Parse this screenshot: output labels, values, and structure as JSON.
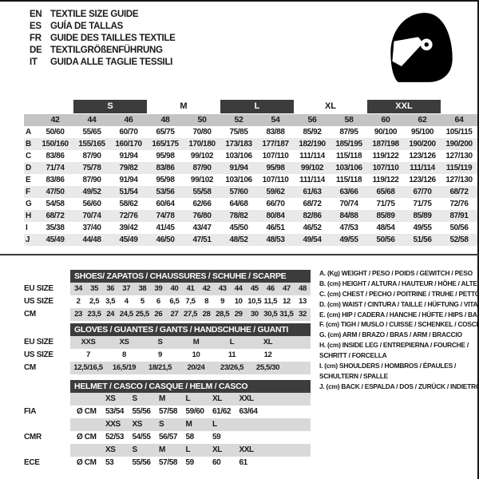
{
  "page": {
    "languages": [
      {
        "code": "EN",
        "text": "TEXTILE SIZE GUIDE"
      },
      {
        "code": "ES",
        "text": "GUÍA DE TALLAS"
      },
      {
        "code": "FR",
        "text": "GUIDE DES TAILLES TEXTILE"
      },
      {
        "code": "DE",
        "text": "TEXTILGRÖßENFÜHRUNG"
      },
      {
        "code": "IT",
        "text": "GUIDA ALLE TAGLIE TESSILI"
      }
    ],
    "helmet_icon": "racing-helmet"
  },
  "size_table": {
    "bands": [
      {
        "label": "S",
        "highlight": true
      },
      {
        "label": "M",
        "highlight": false
      },
      {
        "label": "L",
        "highlight": true
      },
      {
        "label": "XL",
        "highlight": false
      },
      {
        "label": "XXL",
        "highlight": true
      }
    ],
    "columns": [
      "42",
      "44",
      "46",
      "48",
      "50",
      "52",
      "54",
      "56",
      "58",
      "60",
      "62",
      "64"
    ],
    "rows": [
      {
        "label": "A",
        "values": [
          "50/60",
          "55/65",
          "60/70",
          "65/75",
          "70/80",
          "75/85",
          "83/88",
          "85/92",
          "87/95",
          "90/100",
          "95/100",
          "105/115"
        ]
      },
      {
        "label": "B",
        "values": [
          "150/160",
          "155/165",
          "160/170",
          "165/175",
          "170/180",
          "173/183",
          "177/187",
          "182/190",
          "185/195",
          "187/198",
          "190/200",
          "190/200"
        ]
      },
      {
        "label": "C",
        "values": [
          "83/86",
          "87/90",
          "91/94",
          "95/98",
          "99/102",
          "103/106",
          "107/110",
          "111/114",
          "115/118",
          "119/122",
          "123/126",
          "127/130"
        ]
      },
      {
        "label": "D",
        "values": [
          "71/74",
          "75/78",
          "79/82",
          "83/86",
          "87/90",
          "91/94",
          "95/98",
          "99/102",
          "103/106",
          "107/110",
          "111/114",
          "115/119"
        ]
      },
      {
        "label": "E",
        "values": [
          "83/86",
          "87/90",
          "91/94",
          "95/98",
          "99/102",
          "103/106",
          "107/110",
          "111/114",
          "115/118",
          "119/122",
          "123/126",
          "127/130"
        ]
      },
      {
        "label": "F",
        "values": [
          "47/50",
          "49/52",
          "51/54",
          "53/56",
          "55/58",
          "57/60",
          "59/62",
          "61/63",
          "63/66",
          "65/68",
          "67/70",
          "68/72"
        ]
      },
      {
        "label": "G",
        "values": [
          "54/58",
          "56/60",
          "58/62",
          "60/64",
          "62/66",
          "64/68",
          "66/70",
          "68/72",
          "70/74",
          "71/75",
          "71/75",
          "72/76"
        ]
      },
      {
        "label": "H",
        "values": [
          "68/72",
          "70/74",
          "72/76",
          "74/78",
          "76/80",
          "78/82",
          "80/84",
          "82/86",
          "84/88",
          "85/89",
          "85/89",
          "87/91"
        ]
      },
      {
        "label": "I",
        "values": [
          "35/38",
          "37/40",
          "39/42",
          "41/45",
          "43/47",
          "45/50",
          "46/51",
          "46/52",
          "47/53",
          "48/54",
          "49/55",
          "50/56"
        ]
      },
      {
        "label": "J",
        "values": [
          "45/49",
          "44/48",
          "45/49",
          "46/50",
          "47/51",
          "48/52",
          "48/53",
          "49/54",
          "49/55",
          "50/56",
          "51/56",
          "52/58"
        ]
      }
    ]
  },
  "shoes": {
    "title": "SHOES/ ZAPATOS / CHAUSSURES / SCHUHE / SCARPE",
    "rows": [
      {
        "label": "EU SIZE",
        "shaded": true,
        "values": [
          "34",
          "35",
          "36",
          "37",
          "38",
          "39",
          "40",
          "41",
          "42",
          "43",
          "44",
          "45",
          "46",
          "47",
          "48"
        ]
      },
      {
        "label": "US SIZE",
        "shaded": false,
        "values": [
          "2",
          "2,5",
          "3,5",
          "4",
          "5",
          "6",
          "6,5",
          "7,5",
          "8",
          "9",
          "10",
          "10,5",
          "11,5",
          "12",
          "13"
        ]
      },
      {
        "label": "CM",
        "shaded": true,
        "values": [
          "23",
          "23,5",
          "24",
          "24,5",
          "25,5",
          "26",
          "27",
          "27,5",
          "28",
          "28,5",
          "29",
          "30",
          "30,5",
          "31,5",
          "32"
        ]
      }
    ]
  },
  "gloves": {
    "title": "GLOVES / GUANTES / GANTS / HANDSCHUHE / GUANTI",
    "rows": [
      {
        "label": "EU SIZE",
        "shaded": true,
        "values": [
          "XXS",
          "XS",
          "S",
          "M",
          "L",
          "XL"
        ]
      },
      {
        "label": "US SIZE",
        "shaded": false,
        "values": [
          "7",
          "8",
          "9",
          "10",
          "11",
          "12"
        ]
      },
      {
        "label": "CM",
        "shaded": true,
        "values": [
          "12,5/16,5",
          "16,5/19",
          "18/21,5",
          "20/24",
          "23/26,5",
          "25,5/30"
        ]
      }
    ]
  },
  "helmet": {
    "title": "HELMET / CASCO / CASQUE / HELM / CASCO",
    "rows": [
      {
        "label": "",
        "prefix": "",
        "shaded": true,
        "values": [
          "XS",
          "S",
          "M",
          "L",
          "XL",
          "XXL"
        ]
      },
      {
        "label": "FIA",
        "prefix": "Ø CM",
        "shaded": false,
        "values": [
          "53/54",
          "55/56",
          "57/58",
          "59/60",
          "61/62",
          "63/64"
        ]
      },
      {
        "label": "",
        "prefix": "",
        "shaded": true,
        "values": [
          "XXS",
          "XS",
          "S",
          "M",
          "L",
          ""
        ]
      },
      {
        "label": "CMR",
        "prefix": "Ø CM",
        "shaded": false,
        "values": [
          "52/53",
          "54/55",
          "56/57",
          "58",
          "59",
          ""
        ]
      },
      {
        "label": "",
        "prefix": "",
        "shaded": true,
        "values": [
          "XS",
          "S",
          "M",
          "L",
          "XL",
          "XXL"
        ]
      },
      {
        "label": "ECE",
        "prefix": "Ø CM",
        "shaded": false,
        "values": [
          "53",
          "55/56",
          "57/58",
          "59",
          "60",
          "61"
        ]
      }
    ]
  },
  "legend": {
    "lines": [
      "A. (Kg) WEIGHT / PESO / POIDS / GEWITCH / PESO",
      "B. (cm) HEIGHT / ALTURA / HAUTEUR / HÖHE / ALTEZZA",
      "C. (cm) CHEST / PECHO / POITRINE / TRUHE / PETTO",
      "D. (cm) WAIST / CINTURA / TAILLE / HÜFTUNG / VITA",
      "E. (cm) HIP / CADERA / HANCHE / HÜFTE / HIPS /  BACINO",
      "F. (cm) TIGH / MUSLO / CUISSE / SCHENKEL / COSCIA",
      "G. (cm) ARM  / BRAZO / BRAS / ARM / BRACCIO",
      "H. (cm) INSIDE LEG / ENTREPIERNA / FOURCHE /",
      "SCHRITT / FORCELLA",
      "I.  (cm) SHOULDERS / HOMBROS / ÉPAULES /",
      "SCHULTERN / SPALLE",
      "J. (cm) BACK / ESPALDA / DOS / ZURÜCK / INDIETRO"
    ]
  },
  "colors": {
    "bar_dark": "#3c3c3c",
    "header_gray": "#c4c4c4",
    "stripe_gray": "#e9e9e9",
    "band_gray": "#d9d9d9",
    "text": "#1a1a1a"
  }
}
